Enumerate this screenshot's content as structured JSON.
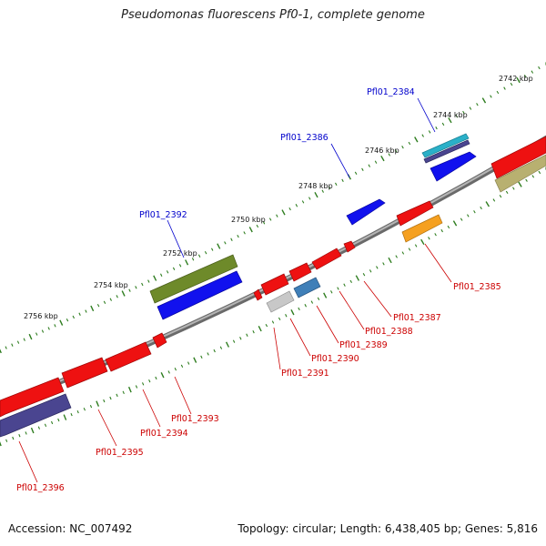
{
  "title": "Pseudomonas fluorescens Pf0-1, complete genome",
  "footer": {
    "accession": "Accession: NC_007492",
    "stats": "Topology: circular; Length: 6,438,405 bp; Genes: 5,816"
  },
  "scale_ticks": [
    {
      "label": "2742 kbp",
      "kbp": 2742
    },
    {
      "label": "2744 kbp",
      "kbp": 2744
    },
    {
      "label": "2746 kbp",
      "kbp": 2746
    },
    {
      "label": "2748 kbp",
      "kbp": 2748
    },
    {
      "label": "2750 kbp",
      "kbp": 2750
    },
    {
      "label": "2752 kbp",
      "kbp": 2752
    },
    {
      "label": "2754 kbp",
      "kbp": 2754
    },
    {
      "label": "2756 kbp",
      "kbp": 2756
    }
  ],
  "gene_labels": [
    {
      "name": "Pfl01_2384",
      "color": "#0000cc"
    },
    {
      "name": "Pfl01_2385",
      "color": "#cc0000"
    },
    {
      "name": "Pfl01_2386",
      "color": "#0000cc"
    },
    {
      "name": "Pfl01_2387",
      "color": "#cc0000"
    },
    {
      "name": "Pfl01_2388",
      "color": "#cc0000"
    },
    {
      "name": "Pfl01_2389",
      "color": "#cc0000"
    },
    {
      "name": "Pfl01_2390",
      "color": "#cc0000"
    },
    {
      "name": "Pfl01_2391",
      "color": "#cc0000"
    },
    {
      "name": "Pfl01_2392",
      "color": "#0000cc"
    },
    {
      "name": "Pfl01_2393",
      "color": "#cc0000"
    },
    {
      "name": "Pfl01_2394",
      "color": "#cc0000"
    },
    {
      "name": "Pfl01_2395",
      "color": "#cc0000"
    },
    {
      "name": "Pfl01_2396",
      "color": "#cc0000"
    }
  ],
  "colors": {
    "backbone": "#7a7a7a",
    "tick": "#2e7d1f",
    "red": "#ee1111",
    "blue": "#1111ee",
    "navy": "#4a4590",
    "olive": "#6e8a2a",
    "khaki": "#b8b070",
    "orange": "#f5a020",
    "cyan": "#2ab0c8",
    "steel": "#3f7fb8",
    "grey": "#c8c8c8",
    "label_blue": "#0000cc",
    "label_red": "#cc0000"
  }
}
